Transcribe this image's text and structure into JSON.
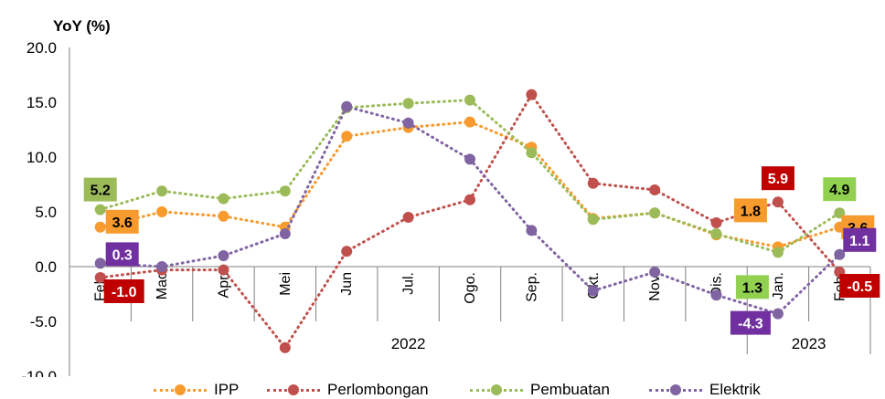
{
  "chart_data": {
    "type": "line",
    "ylabel": "YoY (%)",
    "ylim": [
      -10,
      20
    ],
    "yticks": [
      "20.0",
      "15.0",
      "10.0",
      "5.0",
      "0.0",
      "-5.0",
      "-10.0"
    ],
    "categories": [
      "Feb.",
      "Mac",
      "Apr.",
      "Mei",
      "Jun",
      "Jul.",
      "Ogo.",
      "Sep.",
      "Okt.",
      "Nov.",
      "Dis.",
      "Jan.",
      "Feb."
    ],
    "year_groups": [
      {
        "label": "2022",
        "start": 0,
        "end": 10
      },
      {
        "label": "2023",
        "start": 11,
        "end": 12
      }
    ],
    "grid": false,
    "legend_position": "bottom",
    "series": [
      {
        "name": "IPP",
        "color": "#f79b2e",
        "values": [
          3.6,
          5.0,
          4.6,
          3.6,
          11.9,
          12.7,
          13.2,
          10.9,
          4.4,
          4.9,
          2.9,
          1.8,
          3.6
        ]
      },
      {
        "name": "Perlombongan",
        "color": "#c0504d",
        "values": [
          -1.0,
          -0.3,
          -0.3,
          -7.4,
          1.4,
          4.5,
          6.1,
          15.7,
          7.6,
          7.0,
          4.0,
          5.9,
          -0.5
        ]
      },
      {
        "name": "Pembuatan",
        "color": "#9bbb59",
        "values": [
          5.2,
          6.9,
          6.2,
          6.9,
          14.5,
          14.9,
          15.2,
          10.4,
          4.3,
          4.9,
          3.0,
          1.3,
          4.9
        ]
      },
      {
        "name": "Elektrik",
        "color": "#8064a2",
        "values": [
          0.3,
          0.0,
          1.0,
          3.0,
          14.6,
          13.1,
          9.8,
          3.3,
          -2.2,
          -0.5,
          -2.6,
          -4.3,
          1.1
        ]
      }
    ],
    "data_labels": [
      {
        "series": "Pembuatan",
        "index": 0,
        "text": "5.2",
        "bg": "#9bbb59",
        "fg": "#000000"
      },
      {
        "series": "IPP",
        "index": 0,
        "text": "3.6",
        "bg": "#f79b2e",
        "fg": "#000000"
      },
      {
        "series": "Elektrik",
        "index": 0,
        "text": "0.3",
        "bg": "#7030a0",
        "fg": "#ffffff"
      },
      {
        "series": "Perlombongan",
        "index": 0,
        "text": "-1.0",
        "bg": "#c00000",
        "fg": "#ffffff"
      },
      {
        "series": "Perlombongan",
        "index": 11,
        "text": "5.9",
        "bg": "#c00000",
        "fg": "#ffffff"
      },
      {
        "series": "IPP",
        "index": 11,
        "text": "1.8",
        "bg": "#f79b2e",
        "fg": "#000000"
      },
      {
        "series": "Pembuatan",
        "index": 11,
        "text": "1.3",
        "bg": "#92d050",
        "fg": "#000000"
      },
      {
        "series": "Elektrik",
        "index": 11,
        "text": "-4.3",
        "bg": "#7030a0",
        "fg": "#ffffff"
      },
      {
        "series": "Pembuatan",
        "index": 12,
        "text": "4.9",
        "bg": "#92d050",
        "fg": "#000000"
      },
      {
        "series": "IPP",
        "index": 12,
        "text": "3.6",
        "bg": "#f79b2e",
        "fg": "#000000"
      },
      {
        "series": "Elektrik",
        "index": 12,
        "text": "1.1",
        "bg": "#7030a0",
        "fg": "#ffffff"
      },
      {
        "series": "Perlombongan",
        "index": 12,
        "text": "-0.5",
        "bg": "#c00000",
        "fg": "#ffffff"
      }
    ]
  }
}
